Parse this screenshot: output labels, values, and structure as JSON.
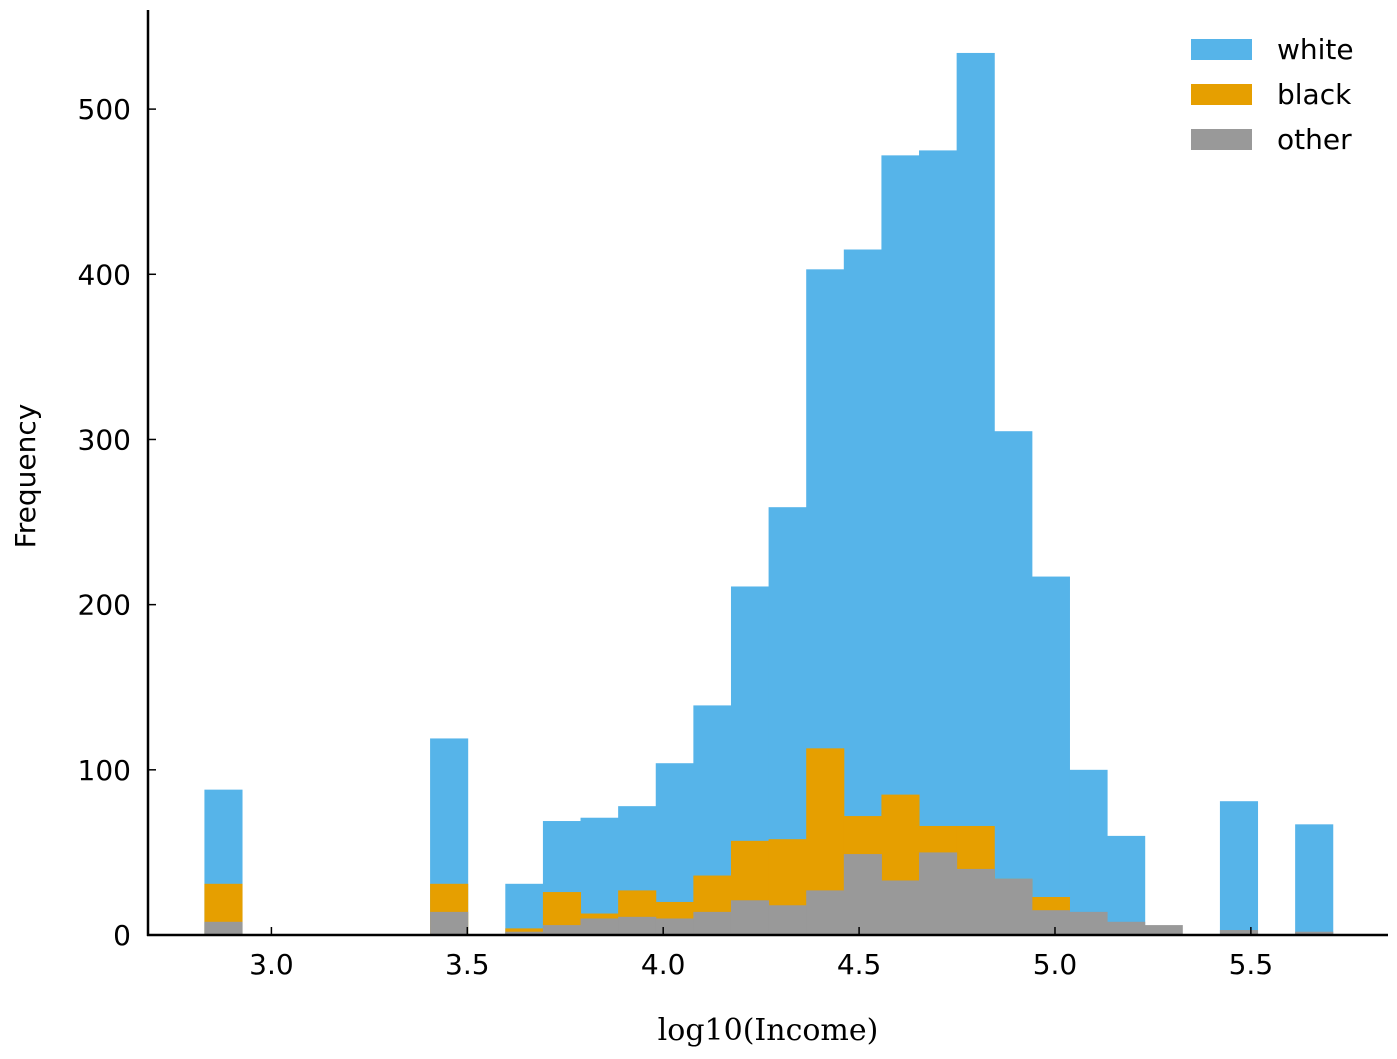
{
  "chart_data": {
    "type": "bar",
    "subtype": "overlapping-histogram",
    "title": "",
    "xlabel": "log10(Income)",
    "ylabel": "Frequency",
    "xlim": [
      2.685,
      5.85
    ],
    "ylim": [
      0,
      560
    ],
    "xticks": [
      3.0,
      3.5,
      4.0,
      4.5,
      5.0,
      5.5
    ],
    "xtick_labels": [
      "3.0",
      "3.5",
      "4.0",
      "4.5",
      "5.0",
      "5.5"
    ],
    "yticks": [
      0,
      100,
      200,
      300,
      400,
      500
    ],
    "ytick_labels": [
      "0",
      "100",
      "200",
      "300",
      "400",
      "500"
    ],
    "bin_edges": [
      2.829,
      2.925,
      3.021,
      3.117,
      3.213,
      3.309,
      3.405,
      3.501,
      3.597,
      3.693,
      3.789,
      3.885,
      3.981,
      4.077,
      4.173,
      4.269,
      4.365,
      4.461,
      4.557,
      4.653,
      4.749,
      4.845,
      4.941,
      5.037,
      5.133,
      5.229,
      5.325,
      5.421,
      5.517,
      5.613,
      5.709
    ],
    "legend_position": "top-right",
    "series": [
      {
        "name": "white",
        "color": "#56b4e9",
        "values": [
          88,
          0,
          0,
          0,
          0,
          0,
          119,
          0,
          31,
          69,
          71,
          78,
          104,
          139,
          211,
          259,
          403,
          415,
          472,
          475,
          534,
          305,
          217,
          100,
          60,
          0,
          0,
          81,
          0,
          67
        ]
      },
      {
        "name": "black",
        "color": "#e69f00",
        "values": [
          31,
          0,
          0,
          0,
          0,
          0,
          31,
          0,
          4,
          26,
          13,
          27,
          20,
          36,
          57,
          58,
          113,
          72,
          85,
          66,
          66,
          34,
          23,
          0,
          0,
          0,
          0,
          0,
          0,
          0
        ]
      },
      {
        "name": "other",
        "color": "#999999",
        "values": [
          8,
          0,
          0,
          0,
          0,
          0,
          14,
          0,
          2,
          6,
          10,
          11,
          10,
          14,
          21,
          18,
          27,
          49,
          33,
          50,
          40,
          34,
          15,
          14,
          8,
          6,
          0,
          3,
          0,
          2
        ]
      }
    ]
  }
}
